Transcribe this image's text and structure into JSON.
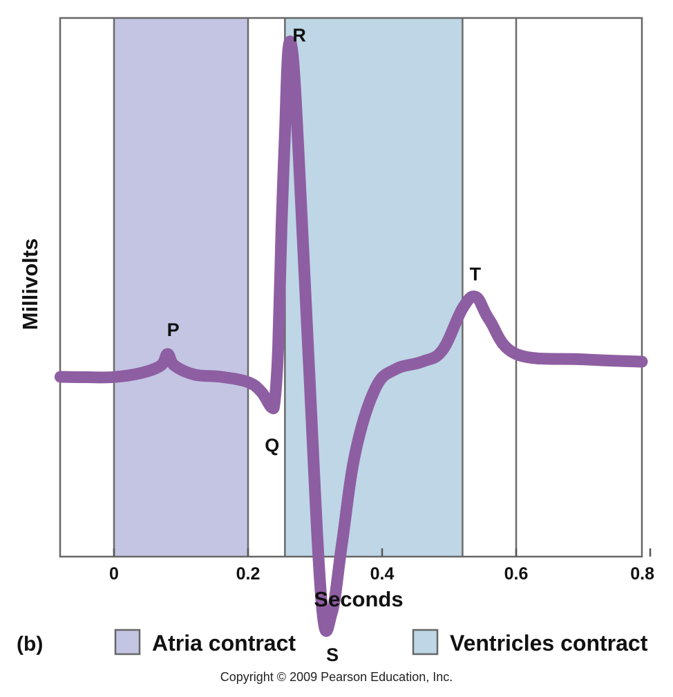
{
  "chart_data": {
    "type": "line",
    "title": "",
    "xlabel": "Seconds",
    "ylabel": "Millivolts",
    "xlim": [
      -0.08,
      0.8
    ],
    "x_ticks": [
      {
        "value": 0,
        "label": "0"
      },
      {
        "value": 0.2,
        "label": "0.2"
      },
      {
        "value": 0.4,
        "label": "0.4"
      },
      {
        "value": 0.6,
        "label": "0.6"
      },
      {
        "value": 0.8,
        "label": "0.8"
      }
    ],
    "vertical_gridlines": [
      0,
      0.2,
      0.6
    ],
    "color": "#8e5ea2",
    "regions": [
      {
        "name": "Atria contract",
        "start": 0.0,
        "end": 0.2,
        "color": "#c3c5e3"
      },
      {
        "name": "Ventricles contract",
        "start": 0.255,
        "end": 0.52,
        "color": "#bed6e5"
      }
    ],
    "series": [
      {
        "x": [
          -0.08,
          -0.04,
          0.0,
          0.04,
          0.07,
          0.08,
          0.09,
          0.12,
          0.16,
          0.2,
          0.22,
          0.235,
          0.24,
          0.245,
          0.25,
          0.255,
          0.26,
          0.267,
          0.275,
          0.29,
          0.31,
          0.325,
          0.34,
          0.36,
          0.39,
          0.42,
          0.46,
          0.49,
          0.52,
          0.54,
          0.56,
          0.6,
          0.7,
          0.8
        ],
        "y": [
          0.0,
          -0.005,
          -0.003,
          0.05,
          0.15,
          0.3,
          0.15,
          0.03,
          0.0,
          -0.07,
          -0.2,
          -0.4,
          -0.3,
          0.4,
          2.0,
          3.2,
          4.3,
          4.2,
          3.0,
          0.3,
          -3.0,
          -3.1,
          -2.2,
          -1.0,
          -0.15,
          0.1,
          0.2,
          0.35,
          0.9,
          1.05,
          0.75,
          0.3,
          0.23,
          0.2
        ]
      }
    ],
    "annotations": [
      {
        "text": "P",
        "x": 0.08,
        "y": 0.3
      },
      {
        "text": "Q",
        "x": 0.24,
        "y": -0.4
      },
      {
        "text": "R",
        "x": 0.264,
        "y": 4.3
      },
      {
        "text": "S",
        "x": 0.328,
        "y": -3.1
      },
      {
        "text": "T",
        "x": 0.537,
        "y": 1.05
      }
    ]
  },
  "legend": {
    "panel_label": "(b)",
    "items": [
      {
        "label": "Atria contract",
        "color": "#c3c5e3"
      },
      {
        "label": "Ventricles contract",
        "color": "#bed6e5"
      }
    ]
  },
  "footer": {
    "copyright": "Copyright © 2009 Pearson Education, Inc."
  }
}
